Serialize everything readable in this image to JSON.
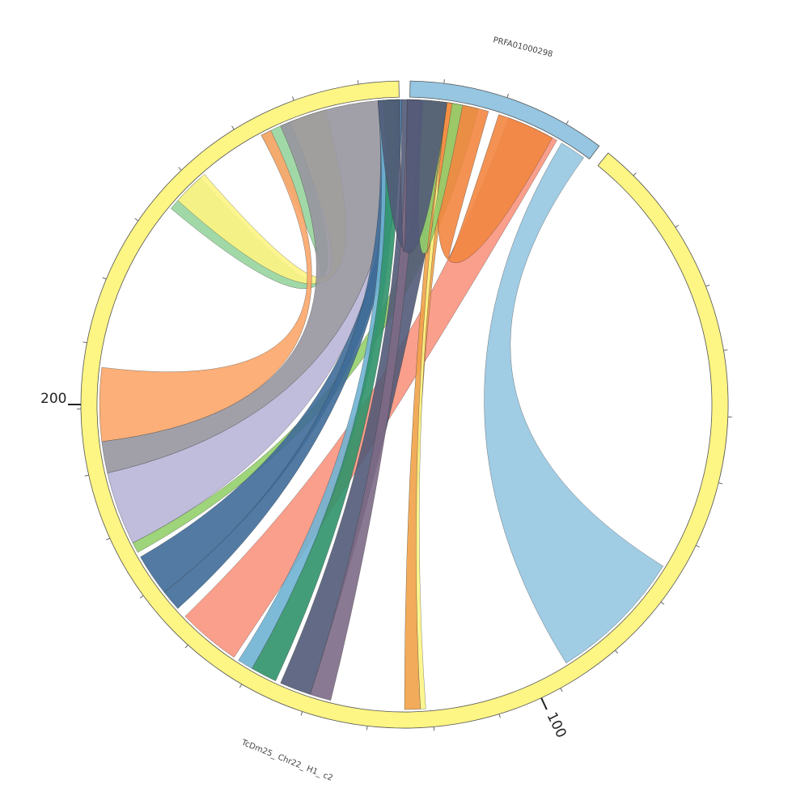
{
  "sequences": [
    {
      "name": "PRFA01000298",
      "color": "#96c6e1",
      "stroke": "#555555"
    },
    {
      "name": "TcDm25_ Chr22_ H1_ c2",
      "color": "#fdf584",
      "stroke": "#555555"
    }
  ],
  "tick_labels": [
    {
      "text": "100"
    },
    {
      "text": "200"
    }
  ],
  "ribbon_colors": {
    "blue": "#96c6e1",
    "slate": "#525a78",
    "green": "#94cf6c",
    "orange": "#f28640",
    "yellow": "#fdf584",
    "mint": "#97d49d",
    "peach": "#fca669",
    "gray": "#9796a0",
    "lavender": "#b8b6d7",
    "salmon": "#f99580",
    "amber": "#efa248",
    "steel": "#3f6b98",
    "teal": "#30926a",
    "sky": "#6fb3d3",
    "mauve": "#7d6a86"
  }
}
